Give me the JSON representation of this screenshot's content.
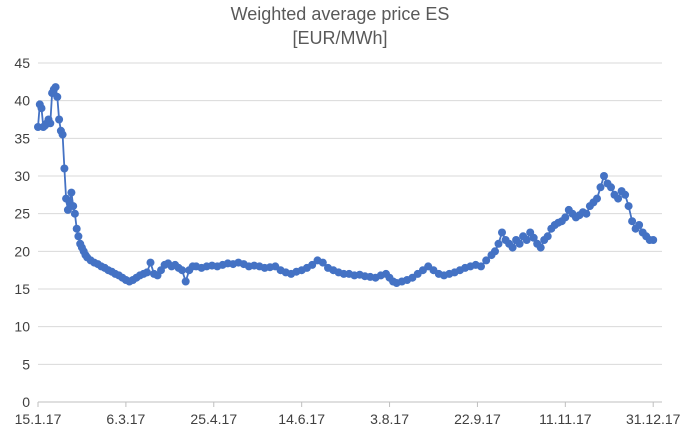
{
  "chart_data": {
    "type": "line",
    "title": "Weighted average price ES",
    "subtitle": "[EUR/MWh]",
    "xlabel": "",
    "ylabel": "",
    "ylim": [
      0,
      45
    ],
    "yticks": [
      0,
      5,
      10,
      15,
      20,
      25,
      30,
      35,
      40,
      45
    ],
    "xlim": [
      "2017-01-15",
      "2018-01-05"
    ],
    "xtick_labels": [
      "15.1.17",
      "6.3.17",
      "25.4.17",
      "14.6.17",
      "3.8.17",
      "22.9.17",
      "11.11.17",
      "31.12.17"
    ],
    "xtick_dates": [
      "2017-01-15",
      "2017-03-06",
      "2017-04-25",
      "2017-06-14",
      "2017-08-03",
      "2017-09-22",
      "2017-11-11",
      "2017-12-31"
    ],
    "grid": "horizontal",
    "legend": "none",
    "colors": {
      "series": "#4472c4",
      "grid": "#d9d9d9",
      "axis": "#bfbfbf"
    },
    "series": [
      {
        "marker": "circle",
        "points": [
          [
            "2017-01-15",
            36.5
          ],
          [
            "2017-01-16",
            39.5
          ],
          [
            "2017-01-17",
            39.0
          ],
          [
            "2017-01-18",
            36.5
          ],
          [
            "2017-01-19",
            36.7
          ],
          [
            "2017-01-20",
            37.0
          ],
          [
            "2017-01-21",
            37.5
          ],
          [
            "2017-01-22",
            37.0
          ],
          [
            "2017-01-23",
            41.0
          ],
          [
            "2017-01-24",
            41.5
          ],
          [
            "2017-01-25",
            41.8
          ],
          [
            "2017-01-26",
            40.5
          ],
          [
            "2017-01-27",
            37.5
          ],
          [
            "2017-01-28",
            36.0
          ],
          [
            "2017-01-29",
            35.5
          ],
          [
            "2017-01-30",
            31.0
          ],
          [
            "2017-01-31",
            27.0
          ],
          [
            "2017-02-01",
            25.5
          ],
          [
            "2017-02-02",
            26.5
          ],
          [
            "2017-02-03",
            27.8
          ],
          [
            "2017-02-04",
            26.0
          ],
          [
            "2017-02-05",
            25.0
          ],
          [
            "2017-02-06",
            23.0
          ],
          [
            "2017-02-07",
            22.0
          ],
          [
            "2017-02-08",
            21.0
          ],
          [
            "2017-02-09",
            20.5
          ],
          [
            "2017-02-10",
            20.0
          ],
          [
            "2017-02-11",
            19.5
          ],
          [
            "2017-02-12",
            19.2
          ],
          [
            "2017-02-14",
            18.8
          ],
          [
            "2017-02-16",
            18.5
          ],
          [
            "2017-02-18",
            18.3
          ],
          [
            "2017-02-20",
            18.0
          ],
          [
            "2017-02-22",
            17.8
          ],
          [
            "2017-02-24",
            17.5
          ],
          [
            "2017-02-26",
            17.3
          ],
          [
            "2017-02-28",
            17.0
          ],
          [
            "2017-03-02",
            16.8
          ],
          [
            "2017-03-04",
            16.5
          ],
          [
            "2017-03-06",
            16.2
          ],
          [
            "2017-03-08",
            16.0
          ],
          [
            "2017-03-10",
            16.2
          ],
          [
            "2017-03-12",
            16.5
          ],
          [
            "2017-03-14",
            16.8
          ],
          [
            "2017-03-16",
            17.0
          ],
          [
            "2017-03-18",
            17.2
          ],
          [
            "2017-03-20",
            18.5
          ],
          [
            "2017-03-22",
            17.0
          ],
          [
            "2017-03-24",
            16.8
          ],
          [
            "2017-03-26",
            17.5
          ],
          [
            "2017-03-28",
            18.2
          ],
          [
            "2017-03-30",
            18.4
          ],
          [
            "2017-04-01",
            18.0
          ],
          [
            "2017-04-03",
            18.2
          ],
          [
            "2017-04-05",
            17.8
          ],
          [
            "2017-04-07",
            17.5
          ],
          [
            "2017-04-09",
            16.0
          ],
          [
            "2017-04-11",
            17.5
          ],
          [
            "2017-04-13",
            18.0
          ],
          [
            "2017-04-15",
            18.0
          ],
          [
            "2017-04-18",
            17.8
          ],
          [
            "2017-04-21",
            18.0
          ],
          [
            "2017-04-24",
            18.1
          ],
          [
            "2017-04-27",
            18.0
          ],
          [
            "2017-04-30",
            18.2
          ],
          [
            "2017-05-03",
            18.4
          ],
          [
            "2017-05-06",
            18.3
          ],
          [
            "2017-05-09",
            18.5
          ],
          [
            "2017-05-12",
            18.3
          ],
          [
            "2017-05-15",
            18.0
          ],
          [
            "2017-05-18",
            18.1
          ],
          [
            "2017-05-21",
            18.0
          ],
          [
            "2017-05-24",
            17.8
          ],
          [
            "2017-05-27",
            17.9
          ],
          [
            "2017-05-30",
            18.0
          ],
          [
            "2017-06-02",
            17.5
          ],
          [
            "2017-06-05",
            17.2
          ],
          [
            "2017-06-08",
            17.0
          ],
          [
            "2017-06-11",
            17.3
          ],
          [
            "2017-06-14",
            17.5
          ],
          [
            "2017-06-17",
            17.8
          ],
          [
            "2017-06-20",
            18.2
          ],
          [
            "2017-06-23",
            18.8
          ],
          [
            "2017-06-26",
            18.5
          ],
          [
            "2017-06-29",
            17.8
          ],
          [
            "2017-07-02",
            17.5
          ],
          [
            "2017-07-05",
            17.2
          ],
          [
            "2017-07-08",
            17.0
          ],
          [
            "2017-07-11",
            17.0
          ],
          [
            "2017-07-14",
            16.8
          ],
          [
            "2017-07-17",
            16.9
          ],
          [
            "2017-07-20",
            16.7
          ],
          [
            "2017-07-23",
            16.6
          ],
          [
            "2017-07-26",
            16.5
          ],
          [
            "2017-07-29",
            16.8
          ],
          [
            "2017-08-01",
            17.0
          ],
          [
            "2017-08-03",
            16.5
          ],
          [
            "2017-08-05",
            16.0
          ],
          [
            "2017-08-07",
            15.8
          ],
          [
            "2017-08-10",
            16.0
          ],
          [
            "2017-08-13",
            16.2
          ],
          [
            "2017-08-16",
            16.5
          ],
          [
            "2017-08-19",
            17.0
          ],
          [
            "2017-08-22",
            17.5
          ],
          [
            "2017-08-25",
            18.0
          ],
          [
            "2017-08-28",
            17.5
          ],
          [
            "2017-08-31",
            17.0
          ],
          [
            "2017-09-03",
            16.8
          ],
          [
            "2017-09-06",
            17.0
          ],
          [
            "2017-09-09",
            17.2
          ],
          [
            "2017-09-12",
            17.5
          ],
          [
            "2017-09-15",
            17.8
          ],
          [
            "2017-09-18",
            18.0
          ],
          [
            "2017-09-21",
            18.2
          ],
          [
            "2017-09-24",
            18.0
          ],
          [
            "2017-09-27",
            18.8
          ],
          [
            "2017-09-30",
            19.5
          ],
          [
            "2017-10-02",
            20.0
          ],
          [
            "2017-10-04",
            21.0
          ],
          [
            "2017-10-06",
            22.5
          ],
          [
            "2017-10-08",
            21.5
          ],
          [
            "2017-10-10",
            21.0
          ],
          [
            "2017-10-12",
            20.5
          ],
          [
            "2017-10-14",
            21.5
          ],
          [
            "2017-10-16",
            21.0
          ],
          [
            "2017-10-18",
            22.0
          ],
          [
            "2017-10-20",
            21.5
          ],
          [
            "2017-10-22",
            22.5
          ],
          [
            "2017-10-24",
            21.8
          ],
          [
            "2017-10-26",
            21.0
          ],
          [
            "2017-10-28",
            20.5
          ],
          [
            "2017-10-30",
            21.5
          ],
          [
            "2017-11-01",
            22.0
          ],
          [
            "2017-11-03",
            23.0
          ],
          [
            "2017-11-05",
            23.5
          ],
          [
            "2017-11-07",
            23.8
          ],
          [
            "2017-11-09",
            24.0
          ],
          [
            "2017-11-11",
            24.5
          ],
          [
            "2017-11-13",
            25.5
          ],
          [
            "2017-11-15",
            25.0
          ],
          [
            "2017-11-17",
            24.5
          ],
          [
            "2017-11-19",
            24.8
          ],
          [
            "2017-11-21",
            25.2
          ],
          [
            "2017-11-23",
            25.0
          ],
          [
            "2017-11-25",
            26.0
          ],
          [
            "2017-11-27",
            26.5
          ],
          [
            "2017-11-29",
            27.0
          ],
          [
            "2017-12-01",
            28.5
          ],
          [
            "2017-12-03",
            30.0
          ],
          [
            "2017-12-05",
            29.0
          ],
          [
            "2017-12-07",
            28.5
          ],
          [
            "2017-12-09",
            27.5
          ],
          [
            "2017-12-11",
            27.0
          ],
          [
            "2017-12-13",
            28.0
          ],
          [
            "2017-12-15",
            27.5
          ],
          [
            "2017-12-17",
            26.0
          ],
          [
            "2017-12-19",
            24.0
          ],
          [
            "2017-12-21",
            23.0
          ],
          [
            "2017-12-23",
            23.5
          ],
          [
            "2017-12-25",
            22.5
          ],
          [
            "2017-12-27",
            22.0
          ],
          [
            "2017-12-29",
            21.5
          ],
          [
            "2017-12-31",
            21.5
          ]
        ]
      }
    ]
  }
}
